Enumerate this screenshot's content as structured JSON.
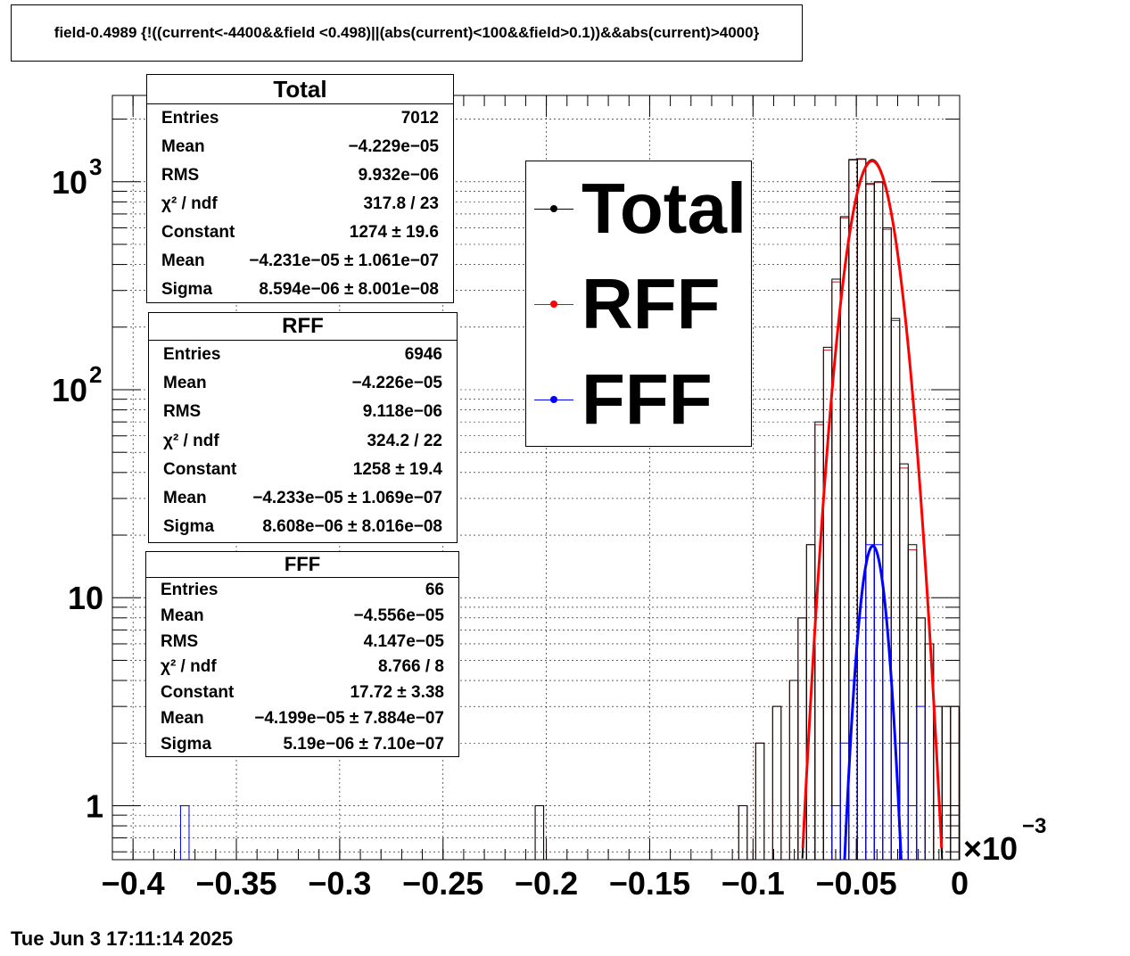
{
  "title": "field-0.4989 {!((current<-4400&&field <0.498)||(abs(current)<100&&field>0.1))&&abs(current)>4000}",
  "timestamp": "Tue Jun  3 17:11:14 2025",
  "x_axis_exponent_base": "×10",
  "x_axis_exponent": "−3",
  "colors": {
    "total": "#000000",
    "rff_hist": "#b22222",
    "rff_fit": "#ff0000",
    "fff": "#0000ff"
  },
  "stats": {
    "total": {
      "title": "Total",
      "rows": [
        {
          "label": "Entries",
          "value": "7012"
        },
        {
          "label": "Mean",
          "value": "−4.229e−05"
        },
        {
          "label": "RMS",
          "value": "9.932e−06"
        },
        {
          "label": "χ² / ndf",
          "value": "317.8 / 23"
        },
        {
          "label": "Constant",
          "value": "1274 ± 19.6"
        },
        {
          "label": "Mean",
          "value": "−4.231e−05 ± 1.061e−07"
        },
        {
          "label": "Sigma",
          "value": "8.594e−06 ± 8.001e−08"
        }
      ]
    },
    "rff": {
      "title": "RFF",
      "rows": [
        {
          "label": "Entries",
          "value": "6946"
        },
        {
          "label": "Mean",
          "value": "−4.226e−05"
        },
        {
          "label": "RMS",
          "value": "9.118e−06"
        },
        {
          "label": "χ² / ndf",
          "value": "324.2 / 22"
        },
        {
          "label": "Constant",
          "value": "1258 ± 19.4"
        },
        {
          "label": "Mean",
          "value": "−4.233e−05 ± 1.069e−07"
        },
        {
          "label": "Sigma",
          "value": "8.608e−06 ± 8.016e−08"
        }
      ]
    },
    "fff": {
      "title": "FFF",
      "rows": [
        {
          "label": "Entries",
          "value": "66"
        },
        {
          "label": "Mean",
          "value": "−4.556e−05"
        },
        {
          "label": "RMS",
          "value": "4.147e−05"
        },
        {
          "label": "χ² / ndf",
          "value": "8.766 / 8"
        },
        {
          "label": "Constant",
          "value": "17.72 ± 3.38"
        },
        {
          "label": "Mean",
          "value": "−4.199e−05 ± 7.884e−07"
        },
        {
          "label": "Sigma",
          "value": "5.19e−06 ± 7.10e−07"
        }
      ]
    }
  },
  "legend": [
    {
      "label": "Total",
      "color": "#000000"
    },
    {
      "label": "RFF",
      "color": "#ff0000"
    },
    {
      "label": "FFF",
      "color": "#0000ff"
    }
  ],
  "chart_data": {
    "type": "histogram",
    "x_unit_scale": 0.001,
    "xlim": [
      -0.41,
      0.0
    ],
    "ylim_log": [
      0.55,
      2600
    ],
    "yscale": "log",
    "grid": true,
    "x_ticks": [
      {
        "value": -0.4,
        "label": "−0.4"
      },
      {
        "value": -0.35,
        "label": "−0.35"
      },
      {
        "value": -0.3,
        "label": "−0.3"
      },
      {
        "value": -0.25,
        "label": "−0.25"
      },
      {
        "value": -0.2,
        "label": "−0.2"
      },
      {
        "value": -0.15,
        "label": "−0.15"
      },
      {
        "value": -0.1,
        "label": "−0.1"
      },
      {
        "value": -0.05,
        "label": "−0.05"
      },
      {
        "value": 0,
        "label": "0"
      }
    ],
    "y_ticks": [
      {
        "value": 1,
        "label": "1"
      },
      {
        "value": 10,
        "label": "10"
      },
      {
        "value": 100,
        "label": "10",
        "exp": "2"
      },
      {
        "value": 1000,
        "label": "10",
        "exp": "3"
      }
    ],
    "bin_width": 0.0041,
    "series": [
      {
        "name": "Total",
        "bins": [
          [
            -0.2054,
            1
          ],
          [
            -0.1069,
            1
          ],
          [
            -0.0987,
            2
          ],
          [
            -0.0905,
            3
          ],
          [
            -0.0823,
            4
          ],
          [
            -0.0782,
            8
          ],
          [
            -0.0741,
            18
          ],
          [
            -0.07,
            70
          ],
          [
            -0.0659,
            160
          ],
          [
            -0.0618,
            340
          ],
          [
            -0.0577,
            680
          ],
          [
            -0.0536,
            1280
          ],
          [
            -0.0495,
            1290
          ],
          [
            -0.0454,
            980
          ],
          [
            -0.0413,
            1000
          ],
          [
            -0.0372,
            600
          ],
          [
            -0.0331,
            220
          ],
          [
            -0.029,
            44
          ],
          [
            -0.0249,
            18
          ],
          [
            -0.0208,
            8
          ],
          [
            -0.0167,
            6
          ],
          [
            -0.0126,
            3
          ],
          [
            -0.0085,
            3
          ],
          [
            -0.0044,
            3
          ]
        ]
      },
      {
        "name": "RFF",
        "bins": [
          [
            -0.2054,
            1
          ],
          [
            -0.1069,
            1
          ],
          [
            -0.0987,
            2
          ],
          [
            -0.0905,
            3
          ],
          [
            -0.0823,
            4
          ],
          [
            -0.0782,
            8
          ],
          [
            -0.0741,
            18
          ],
          [
            -0.07,
            68
          ],
          [
            -0.0659,
            155
          ],
          [
            -0.0618,
            330
          ],
          [
            -0.0577,
            670
          ],
          [
            -0.0536,
            1270
          ],
          [
            -0.0495,
            1280
          ],
          [
            -0.0454,
            970
          ],
          [
            -0.0413,
            990
          ],
          [
            -0.0372,
            590
          ],
          [
            -0.0331,
            215
          ],
          [
            -0.029,
            42
          ],
          [
            -0.0249,
            17
          ],
          [
            -0.0208,
            8
          ],
          [
            -0.0167,
            6
          ],
          [
            -0.0126,
            3
          ],
          [
            -0.0085,
            3
          ],
          [
            -0.0044,
            3
          ]
        ]
      },
      {
        "name": "FFF",
        "bins": [
          [
            -0.377,
            1
          ],
          [
            -0.0618,
            1
          ],
          [
            -0.0577,
            2
          ],
          [
            -0.0536,
            4
          ],
          [
            -0.0495,
            8
          ],
          [
            -0.0454,
            18
          ],
          [
            -0.0413,
            18
          ],
          [
            -0.0372,
            8
          ],
          [
            -0.0331,
            1
          ],
          [
            -0.029,
            2
          ],
          [
            -0.0249,
            1
          ],
          [
            -0.0208,
            3
          ]
        ]
      }
    ],
    "fits": [
      {
        "name": "Total",
        "type": "gaus",
        "constant": 1274,
        "mean": -0.04231,
        "sigma": 0.008594
      },
      {
        "name": "RFF",
        "type": "gaus",
        "constant": 1258,
        "mean": -0.04233,
        "sigma": 0.008608
      },
      {
        "name": "FFF",
        "type": "gaus",
        "constant": 17.72,
        "mean": -0.04199,
        "sigma": 0.00519
      }
    ]
  }
}
